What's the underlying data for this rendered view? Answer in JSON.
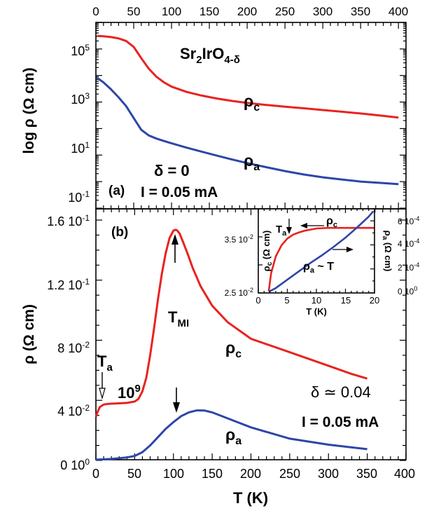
{
  "chart_data": [
    {
      "id": "a",
      "type": "line",
      "panel_label": "(a)",
      "xlabel": "",
      "ylabel": "log ρ (Ω cm)",
      "xlim": [
        0,
        410
      ],
      "yscale": "log",
      "ylim": [
        0.1,
        1000000
      ],
      "x_ticks_top": [
        "0",
        "50",
        "100",
        "150",
        "200",
        "250",
        "300",
        "350",
        "400"
      ],
      "y_ticks": [
        "10^5",
        "10^3",
        "10^1",
        "10^-1"
      ],
      "annotations": {
        "formula": "Sr2IrO4-δ",
        "delta": "δ = 0",
        "current": "I = 0.05 mA"
      },
      "series": [
        {
          "name": "ρc",
          "color": "#e8231f",
          "x": [
            2,
            10,
            20,
            30,
            40,
            50,
            60,
            70,
            80,
            90,
            100,
            120,
            140,
            160,
            180,
            200,
            225,
            250,
            275,
            300,
            325,
            350,
            375,
            400
          ],
          "y": [
            310000,
            300000,
            280000,
            250000,
            200000,
            120000,
            45000,
            18000,
            9000,
            5500,
            3800,
            2400,
            1750,
            1350,
            1100,
            920,
            780,
            670,
            580,
            500,
            430,
            370,
            310,
            260
          ]
        },
        {
          "name": "ρa",
          "color": "#2d46a8",
          "x": [
            2,
            10,
            20,
            30,
            40,
            50,
            60,
            70,
            80,
            90,
            100,
            120,
            140,
            160,
            180,
            200,
            225,
            250,
            275,
            300,
            325,
            350,
            375,
            400
          ],
          "y": [
            8000,
            5500,
            3000,
            1500,
            700,
            250,
            90,
            55,
            42,
            34,
            28,
            19,
            13.5,
            9.5,
            6.8,
            5,
            3.5,
            2.5,
            1.85,
            1.45,
            1.2,
            1.0,
            0.9,
            0.8
          ]
        }
      ]
    },
    {
      "id": "b",
      "type": "line",
      "panel_label": "(b)",
      "xlabel": "T (K)",
      "ylabel": "ρ (Ω cm)",
      "xlim": [
        0,
        400
      ],
      "ylim": [
        0,
        0.16
      ],
      "x_ticks": [
        "0",
        "50",
        "100",
        "150",
        "200",
        "250",
        "300",
        "350",
        "400"
      ],
      "y_ticks": [
        "0 10^0",
        "4 10^-2",
        "8 10^-2",
        "1.2 10^-1",
        "1.6 10^-1"
      ],
      "scale_factor_label": "10^9",
      "annotations": {
        "tmi": "TMI",
        "ta": "Ta",
        "delta": "δ ≃ 0.04",
        "current": "I = 0.05 mA"
      },
      "series": [
        {
          "name": "ρc",
          "color": "#e8231f",
          "x": [
            0,
            2,
            5,
            10,
            15,
            20,
            30,
            40,
            50,
            55,
            60,
            65,
            70,
            75,
            80,
            85,
            90,
            95,
            100,
            103,
            105,
            108,
            112,
            118,
            125,
            135,
            150,
            170,
            200,
            250,
            300,
            330,
            350
          ],
          "y": [
            0.029,
            0.032,
            0.0355,
            0.0372,
            0.0376,
            0.0378,
            0.038,
            0.0383,
            0.0392,
            0.041,
            0.046,
            0.055,
            0.07,
            0.088,
            0.107,
            0.124,
            0.138,
            0.148,
            0.153,
            0.1535,
            0.153,
            0.151,
            0.146,
            0.138,
            0.128,
            0.116,
            0.103,
            0.092,
            0.081,
            0.072,
            0.063,
            0.0575,
            0.0545
          ]
        },
        {
          "name": "ρa",
          "color": "#2d46a8",
          "x": [
            0,
            20,
            40,
            50,
            60,
            70,
            80,
            90,
            100,
            110,
            120,
            130,
            140,
            150,
            170,
            200,
            250,
            300,
            350
          ],
          "y": [
            0.0005,
            0.001,
            0.002,
            0.003,
            0.0055,
            0.01,
            0.0155,
            0.021,
            0.0255,
            0.0295,
            0.032,
            0.0333,
            0.0332,
            0.032,
            0.028,
            0.022,
            0.0145,
            0.0105,
            0.0075
          ]
        }
      ]
    },
    {
      "id": "inset",
      "type": "line",
      "xlabel": "T (K)",
      "ylabel_left": "ρc (Ω cm)",
      "ylabel_right": "ρa (Ω cm)",
      "xlim": [
        0,
        20
      ],
      "x_ticks": [
        "0",
        "5",
        "10",
        "15",
        "20"
      ],
      "ylim_left": [
        0.025,
        0.04
      ],
      "y_ticks_left": [
        "2.5 10^-2",
        "3.5 10^-2"
      ],
      "ylim_right": [
        0,
        0.0007
      ],
      "y_ticks_right": [
        "0 10^0",
        "2 10^-4",
        "4 10^-4",
        "6 10^-4"
      ],
      "annotations": {
        "ta": "Ta",
        "rho_c": "ρc",
        "rho_a_t": "ρa ~ T"
      },
      "series": [
        {
          "name": "ρc",
          "color": "#e8231f",
          "axis": "left",
          "x": [
            1.8,
            2.2,
            3,
            4,
            5,
            6,
            7,
            8,
            9,
            10,
            12,
            14,
            16,
            18,
            20
          ],
          "y": [
            0.0253,
            0.0285,
            0.0315,
            0.0335,
            0.0347,
            0.0354,
            0.0358,
            0.0361,
            0.0363,
            0.0365,
            0.0366,
            0.0366,
            0.0366,
            0.0366,
            0.0366
          ]
        },
        {
          "name": "ρa",
          "color": "#2d46a8",
          "axis": "right",
          "x": [
            1.8,
            3,
            5,
            7,
            9,
            11,
            13,
            15,
            17,
            19,
            19.8
          ],
          "y": [
            1e-05,
            4e-05,
            0.00011,
            0.00018,
            0.00025,
            0.000315,
            0.000385,
            0.00046,
            0.000545,
            0.000635,
            0.00068
          ]
        }
      ]
    }
  ]
}
